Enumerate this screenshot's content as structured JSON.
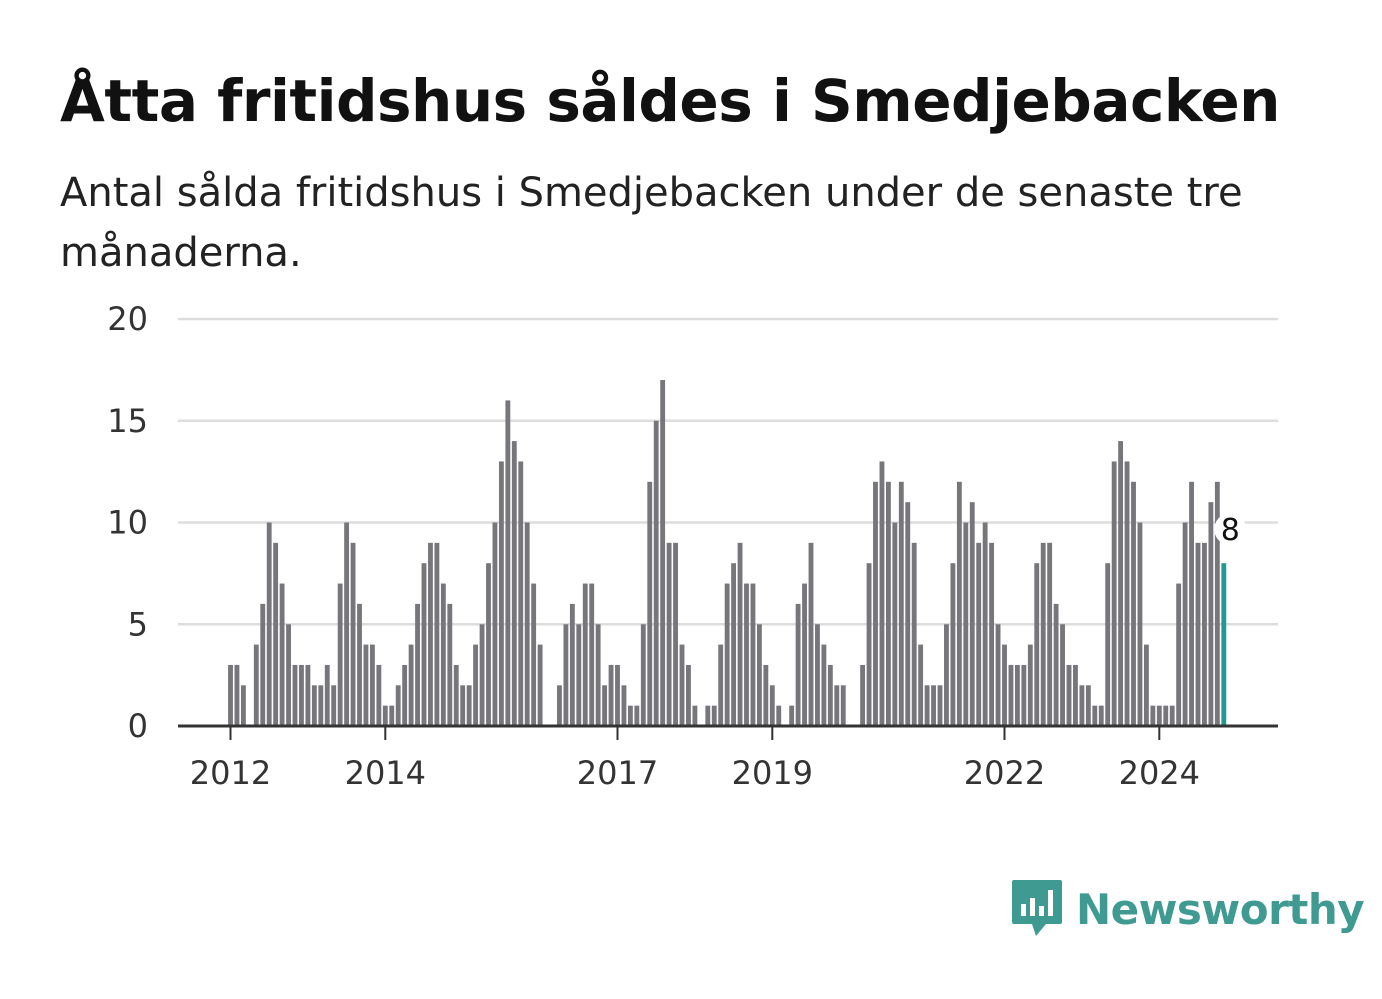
{
  "header": {
    "title": "Åtta fritidshus såldes i Smedjebacken",
    "subtitle": "Antal sålda fritidshus i Smedjebacken under de senaste tre månaderna."
  },
  "brand": {
    "name": "Newsworthy",
    "icon": "newsworthy-logo-icon",
    "color": "#3f9a92"
  },
  "colors": {
    "bar": "#77767b",
    "highlight": "#1e9a93",
    "grid": "#dddddd",
    "axis": "#333333"
  },
  "chart_data": {
    "type": "bar",
    "title": "Åtta fritidshus såldes i Smedjebacken",
    "subtitle": "Antal sålda fritidshus i Smedjebacken under de senaste tre månaderna.",
    "xlabel": "",
    "ylabel": "",
    "ylim": [
      0,
      20
    ],
    "y_ticks": [
      0,
      5,
      10,
      15,
      20
    ],
    "x_ticks": [
      "2012",
      "2014",
      "2017",
      "2019",
      "2022",
      "2024"
    ],
    "grid": true,
    "legend": "none",
    "x_start": "2011-05",
    "x_end": "2024-12",
    "values": [
      0,
      0,
      0,
      0,
      0,
      0,
      0,
      0,
      3,
      3,
      2,
      0,
      4,
      6,
      10,
      9,
      7,
      5,
      3,
      3,
      3,
      2,
      2,
      3,
      2,
      7,
      10,
      9,
      6,
      4,
      4,
      3,
      1,
      1,
      2,
      3,
      4,
      6,
      8,
      9,
      9,
      7,
      6,
      3,
      2,
      2,
      4,
      5,
      8,
      10,
      13,
      16,
      14,
      13,
      10,
      7,
      4,
      0,
      0,
      2,
      5,
      6,
      5,
      7,
      7,
      5,
      2,
      3,
      3,
      2,
      1,
      1,
      5,
      12,
      15,
      17,
      9,
      9,
      4,
      3,
      1,
      0,
      1,
      1,
      4,
      7,
      8,
      9,
      7,
      7,
      5,
      3,
      2,
      1,
      0,
      1,
      6,
      7,
      9,
      5,
      4,
      3,
      2,
      2,
      0,
      0,
      3,
      8,
      12,
      13,
      12,
      10,
      12,
      11,
      9,
      4,
      2,
      2,
      2,
      5,
      8,
      12,
      10,
      11,
      9,
      10,
      9,
      5,
      4,
      3,
      3,
      3,
      4,
      8,
      9,
      9,
      6,
      5,
      3,
      3,
      2,
      2,
      1,
      1,
      8,
      13,
      14,
      13,
      12,
      10,
      4,
      1,
      1,
      1,
      1,
      7,
      10,
      12,
      9,
      9,
      11,
      12,
      8
    ],
    "highlight": {
      "label": "8",
      "value": 8,
      "date": "2024-12"
    }
  }
}
